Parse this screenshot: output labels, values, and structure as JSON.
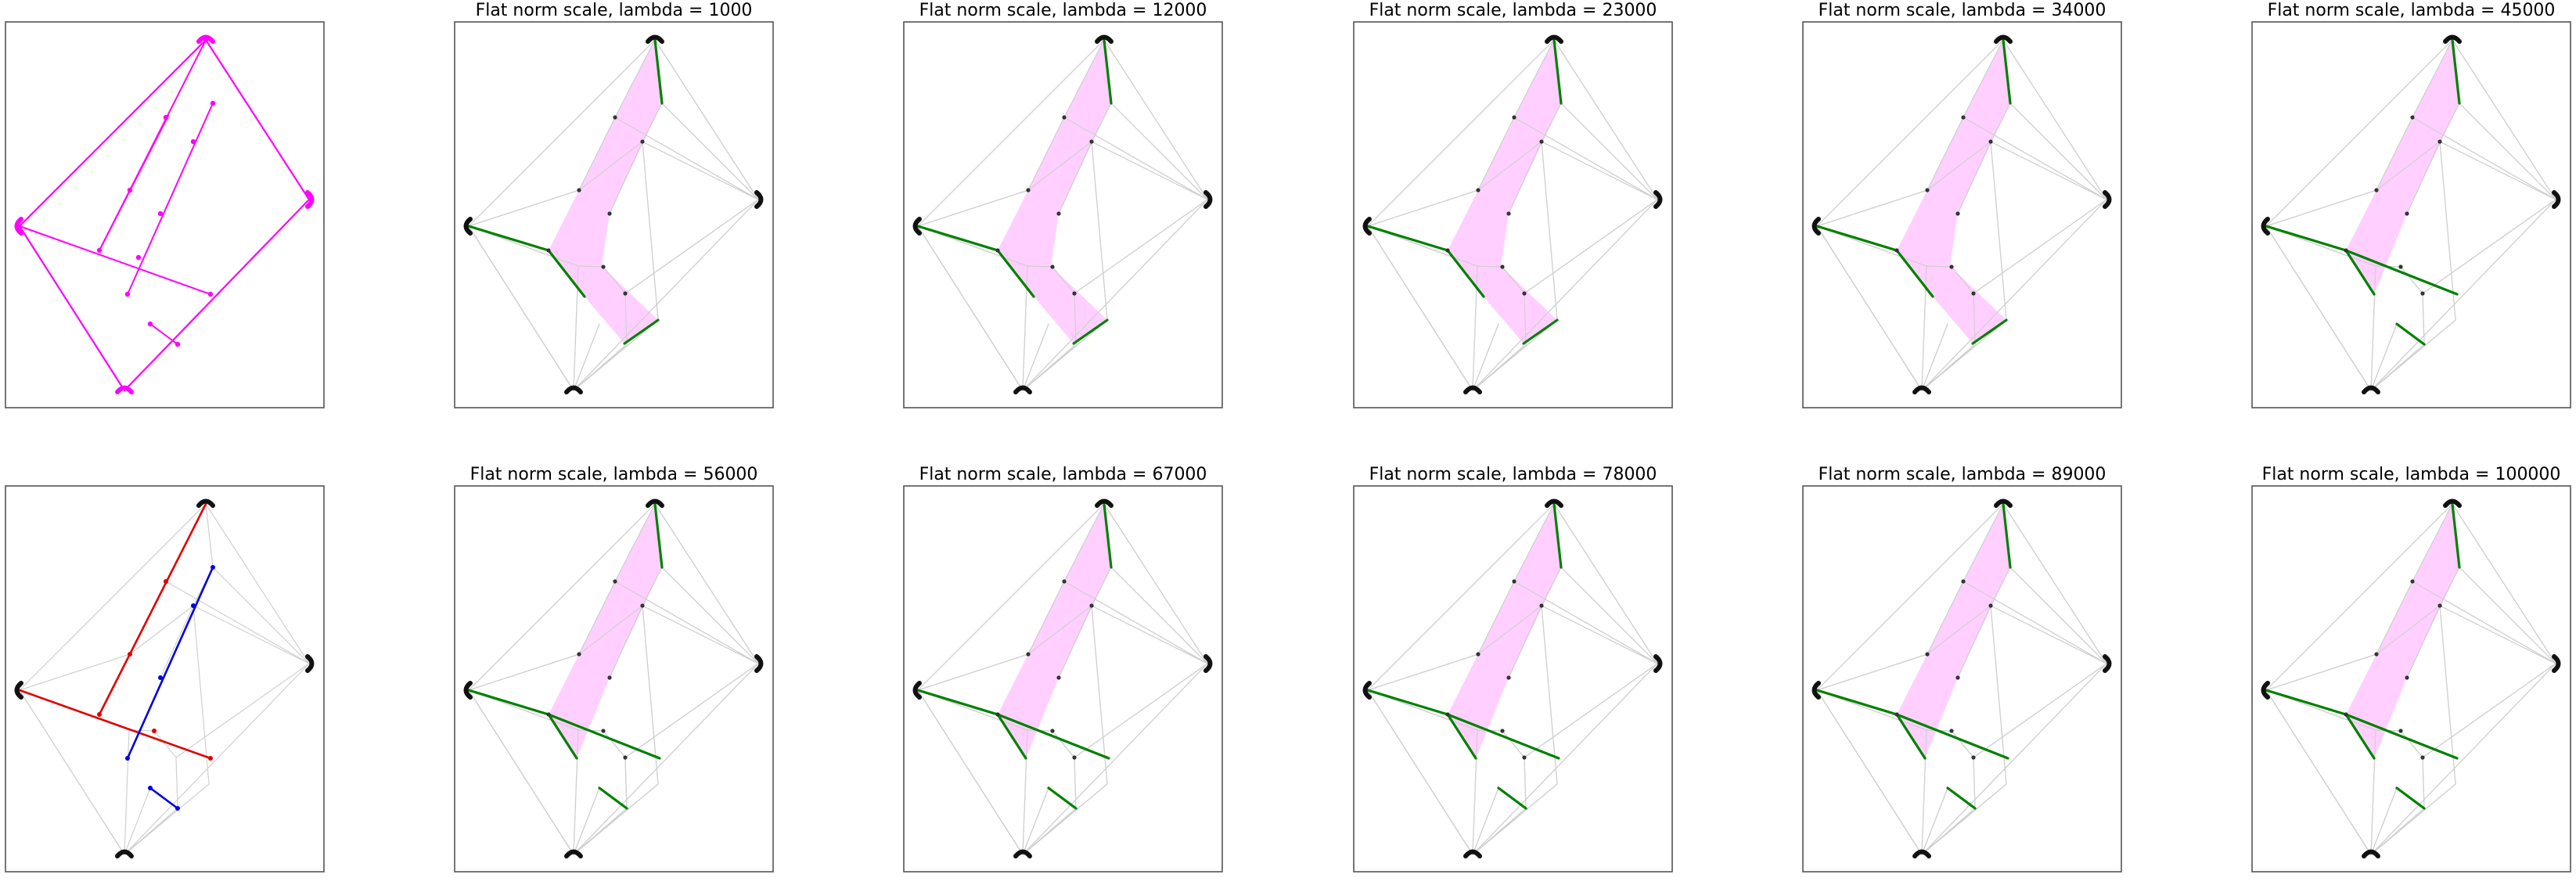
{
  "figure": {
    "rows": 2,
    "columns": 6
  },
  "colors": {
    "magenta": "#ff00ff",
    "region_fill": "#ffc8ff",
    "green_edge": "#008000",
    "red_path": "#e00000",
    "blue_path": "#0000e0",
    "gray_edge": "#d0d0d0",
    "node": "#222222"
  },
  "panels": [
    {
      "row": 0,
      "col": 0,
      "style": "input",
      "title": ""
    },
    {
      "row": 0,
      "col": 1,
      "style": "flat-a",
      "title": "Flat norm scale, lambda = 1000"
    },
    {
      "row": 0,
      "col": 2,
      "style": "flat-a",
      "title": "Flat norm scale, lambda = 12000"
    },
    {
      "row": 0,
      "col": 3,
      "style": "flat-a",
      "title": "Flat norm scale, lambda = 23000"
    },
    {
      "row": 0,
      "col": 4,
      "style": "flat-a",
      "title": "Flat norm scale, lambda = 34000"
    },
    {
      "row": 0,
      "col": 5,
      "style": "flat-b",
      "title": "Flat norm scale, lambda = 45000"
    },
    {
      "row": 1,
      "col": 0,
      "style": "paths",
      "title": ""
    },
    {
      "row": 1,
      "col": 1,
      "style": "flat-b",
      "title": "Flat norm scale, lambda = 56000"
    },
    {
      "row": 1,
      "col": 2,
      "style": "flat-b",
      "title": "Flat norm scale, lambda = 67000"
    },
    {
      "row": 1,
      "col": 3,
      "style": "flat-b",
      "title": "Flat norm scale, lambda = 78000"
    },
    {
      "row": 1,
      "col": 4,
      "style": "flat-b",
      "title": "Flat norm scale, lambda = 89000"
    },
    {
      "row": 1,
      "col": 5,
      "style": "flat-b",
      "title": "Flat norm scale, lambda = 100000"
    }
  ]
}
